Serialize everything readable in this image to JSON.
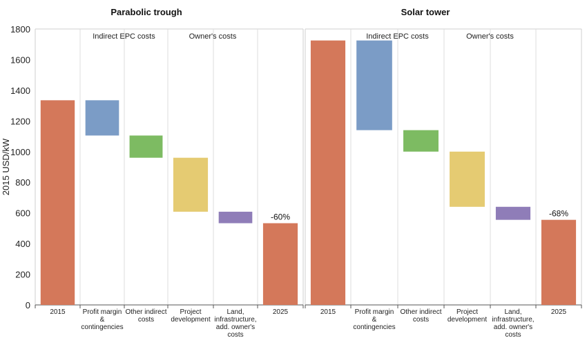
{
  "chart_data": {
    "type": "bar",
    "ylabel": "2015 USD/kW",
    "ylim": [
      0,
      1800
    ],
    "yticks": [
      0,
      200,
      400,
      600,
      800,
      1000,
      1200,
      1400,
      1600,
      1800
    ],
    "grid": true,
    "colors": {
      "total": "#D4785A",
      "profit": "#7B9CC6",
      "other_indirect": "#7DBB62",
      "project_dev": "#E5CB72",
      "land": "#8F7DB8"
    },
    "panels": [
      {
        "title": "Parabolic trough",
        "group_labels": [
          "Indirect EPC costs",
          "Owner's costs"
        ],
        "categories": [
          "2015",
          "Profit margin & contingencies",
          "Other indirect costs",
          "Project development",
          "Land, infrastructure, add. owner's costs",
          "2025"
        ],
        "category_lines": [
          [
            "2015"
          ],
          [
            "Profit margin",
            "&",
            "contingencies"
          ],
          [
            "Other indirect",
            "costs"
          ],
          [
            "Project",
            "development"
          ],
          [
            "Land,",
            "infrastructure,",
            "add. owner's",
            "costs"
          ],
          [
            "2025"
          ]
        ],
        "bars": [
          {
            "label": "2015",
            "start": 0,
            "end": 1335,
            "color_key": "total"
          },
          {
            "label": "Profit margin & contingencies",
            "start": 1105,
            "end": 1335,
            "color_key": "profit"
          },
          {
            "label": "Other indirect costs",
            "start": 960,
            "end": 1105,
            "color_key": "other_indirect"
          },
          {
            "label": "Project development",
            "start": 608,
            "end": 960,
            "color_key": "project_dev"
          },
          {
            "label": "Land, infrastructure, add. owner's costs",
            "start": 533,
            "end": 608,
            "color_key": "land"
          },
          {
            "label": "2025",
            "start": 0,
            "end": 533,
            "color_key": "total"
          }
        ],
        "annotation": "-60%"
      },
      {
        "title": "Solar tower",
        "group_labels": [
          "Indirect EPC costs",
          "Owner's costs"
        ],
        "categories": [
          "2015",
          "Profit margin & contingencies",
          "Other indirect costs",
          "Project development",
          "Land, infrastructure, add. owner's costs",
          "2025"
        ],
        "category_lines": [
          [
            "2015"
          ],
          [
            "Profit margin",
            "&",
            "contingencies"
          ],
          [
            "Other indirect",
            "costs"
          ],
          [
            "Project",
            "development"
          ],
          [
            "Land,",
            "infrastructure,",
            "add. owner's",
            "costs"
          ],
          [
            "2025"
          ]
        ],
        "bars": [
          {
            "label": "2015",
            "start": 0,
            "end": 1725,
            "color_key": "total"
          },
          {
            "label": "Profit margin & contingencies",
            "start": 1140,
            "end": 1725,
            "color_key": "profit"
          },
          {
            "label": "Other indirect costs",
            "start": 1000,
            "end": 1140,
            "color_key": "other_indirect"
          },
          {
            "label": "Project development",
            "start": 640,
            "end": 1000,
            "color_key": "project_dev"
          },
          {
            "label": "Land, infrastructure, add. owner's costs",
            "start": 555,
            "end": 640,
            "color_key": "land"
          },
          {
            "label": "2025",
            "start": 0,
            "end": 555,
            "color_key": "total"
          }
        ],
        "annotation": "-68%"
      }
    ]
  }
}
